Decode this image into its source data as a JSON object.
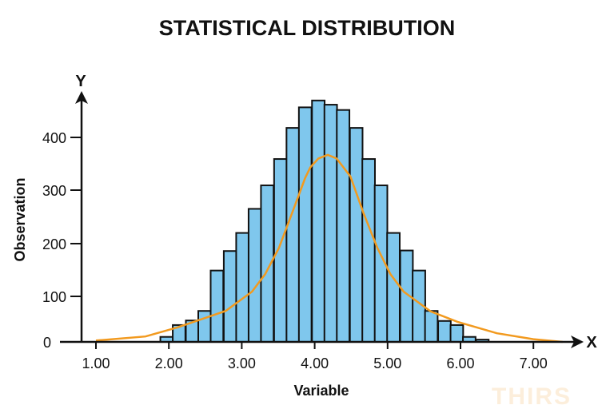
{
  "chart_data": {
    "type": "bar",
    "title": "STATISTICAL DISTRIBUTION",
    "xlabel": "Variable",
    "ylabel": "Observation",
    "x_axis_letter": "X",
    "y_axis_letter": "Y",
    "xlim": [
      0.8,
      7.4
    ],
    "ylim": [
      0,
      480
    ],
    "x_ticks": [
      1.0,
      2.0,
      3.0,
      4.0,
      5.0,
      6.0,
      7.0
    ],
    "x_tick_labels": [
      "1.00",
      "2.00",
      "3.00",
      "4.00",
      "5.00",
      "6.00",
      "7.00"
    ],
    "y_ticks": [
      0,
      100,
      200,
      300,
      400
    ],
    "y_tick_labels": [
      "0",
      "100",
      "200",
      "300",
      "400"
    ],
    "grid": false,
    "bin_width": 0.173,
    "bars": {
      "x": [
        1.97,
        2.14,
        2.32,
        2.49,
        2.66,
        2.84,
        3.01,
        3.18,
        3.35,
        3.53,
        3.7,
        3.87,
        4.05,
        4.22,
        4.39,
        4.57,
        4.74,
        4.91,
        5.08,
        5.26,
        5.43,
        5.6,
        5.78,
        5.95,
        6.12,
        6.3
      ],
      "values": [
        11,
        37,
        47,
        68,
        149,
        186,
        220,
        265,
        309,
        359,
        418,
        457,
        470,
        462,
        452,
        418,
        359,
        309,
        220,
        187,
        149,
        68,
        46,
        37,
        11,
        5
      ]
    },
    "curve": {
      "x": [
        1.0,
        1.68,
        2.12,
        2.78,
        3.14,
        3.32,
        3.51,
        3.69,
        3.87,
        3.94,
        4.05,
        4.18,
        4.3,
        4.49,
        4.67,
        4.86,
        5.04,
        5.22,
        5.59,
        5.96,
        6.5,
        7.0,
        7.4
      ],
      "values": [
        3,
        12,
        32,
        68,
        109,
        142,
        192,
        257,
        323,
        343,
        360,
        367,
        360,
        326,
        257,
        192,
        142,
        109,
        67,
        44,
        19,
        6,
        0
      ]
    },
    "colors": {
      "bar_fill": "#7fc7ed",
      "bar_edge": "#111111",
      "curve": "#f29a1f",
      "axis": "#111111",
      "watermark": "#fbe3c4"
    },
    "watermark": "THIRS"
  }
}
